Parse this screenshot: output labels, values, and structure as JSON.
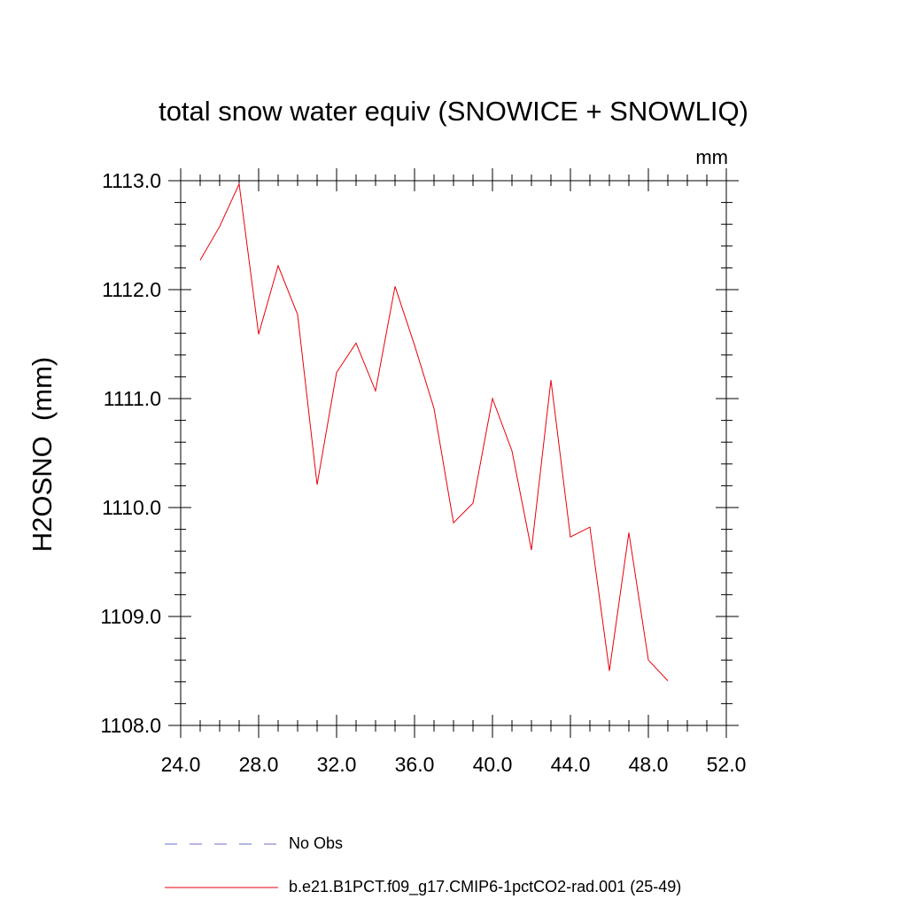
{
  "chart_data": {
    "type": "line",
    "title": "total snow water equiv (SNOWICE + SNOWLIQ)",
    "units": "mm",
    "ylabel": "H2OSNO  (mm)",
    "xlabel": "",
    "xlim": [
      24.0,
      52.0
    ],
    "ylim": [
      1108.0,
      1113.0
    ],
    "xticks": [
      "24.0",
      "28.0",
      "32.0",
      "36.0",
      "40.0",
      "44.0",
      "48.0",
      "52.0"
    ],
    "yticks": [
      "1108.0",
      "1109.0",
      "1110.0",
      "1111.0",
      "1112.0",
      "1113.0"
    ],
    "grid": false,
    "legend_position": "bottom",
    "series": [
      {
        "name": "b.e21.B1PCT.f09_g17.CMIP6-1pctCO2-rad.001 (25-49)",
        "color": "#e8000b",
        "style": "solid",
        "x": [
          25,
          26,
          27,
          28,
          29,
          30,
          31,
          32,
          33,
          34,
          35,
          36,
          37,
          38,
          39,
          40,
          41,
          42,
          43,
          44,
          45,
          46,
          47,
          48,
          49
        ],
        "y": [
          1112.27,
          1112.58,
          1112.97,
          1111.59,
          1112.22,
          1111.77,
          1110.21,
          1111.24,
          1111.51,
          1111.07,
          1112.03,
          1111.49,
          1110.91,
          1109.86,
          1110.04,
          1111.0,
          1110.52,
          1109.61,
          1111.17,
          1109.73,
          1109.82,
          1108.5,
          1109.77,
          1108.6,
          1108.41
        ]
      }
    ],
    "legend": [
      {
        "label": "No Obs",
        "color": "#6b6bc8",
        "style": "dashed"
      },
      {
        "label": "b.e21.B1PCT.f09_g17.CMIP6-1pctCO2-rad.001 (25-49)",
        "color": "#e8000b",
        "style": "solid"
      }
    ]
  }
}
